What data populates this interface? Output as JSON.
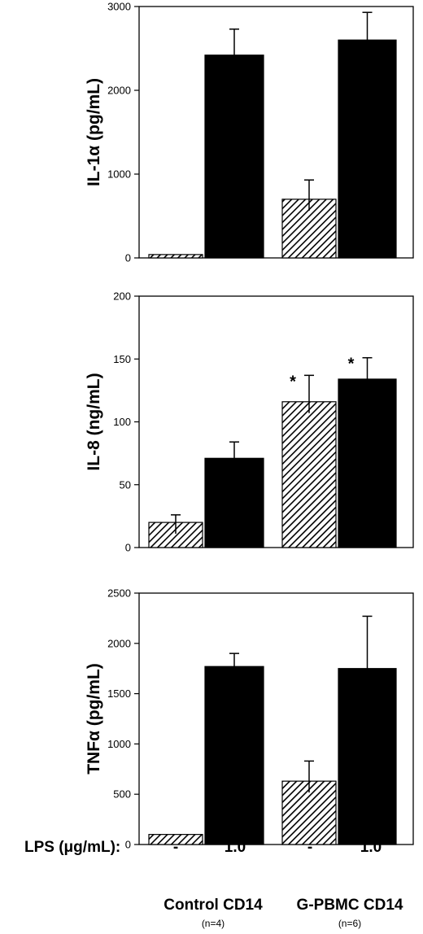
{
  "chart_data": [
    {
      "type": "bar",
      "ylabel": "IL-1α (pg/mL)",
      "ylim": [
        0,
        3000
      ],
      "yticks": [
        0,
        1000,
        2000,
        3000
      ],
      "groups": [
        "Control CD14",
        "G-PBMC CD14"
      ],
      "lps_doses": [
        "-",
        "1.0"
      ],
      "bars": [
        {
          "group": "Control CD14",
          "lps": "-",
          "value": 40,
          "error": 0,
          "fill": "hatched",
          "significant": false
        },
        {
          "group": "Control CD14",
          "lps": "1.0",
          "value": 2420,
          "error": 310,
          "fill": "black",
          "significant": false
        },
        {
          "group": "G-PBMC CD14",
          "lps": "-",
          "value": 700,
          "error": 230,
          "fill": "hatched",
          "significant": false
        },
        {
          "group": "G-PBMC CD14",
          "lps": "1.0",
          "value": 2600,
          "error": 330,
          "fill": "black",
          "significant": false
        }
      ]
    },
    {
      "type": "bar",
      "ylabel": "IL-8 (ng/mL)",
      "ylim": [
        0,
        200
      ],
      "yticks": [
        0,
        50,
        100,
        150,
        200
      ],
      "groups": [
        "Control CD14",
        "G-PBMC CD14"
      ],
      "lps_doses": [
        "-",
        "1.0"
      ],
      "bars": [
        {
          "group": "Control CD14",
          "lps": "-",
          "value": 20,
          "error": 6,
          "fill": "hatched",
          "significant": false
        },
        {
          "group": "Control CD14",
          "lps": "1.0",
          "value": 71,
          "error": 13,
          "fill": "black",
          "significant": false
        },
        {
          "group": "G-PBMC CD14",
          "lps": "-",
          "value": 116,
          "error": 21,
          "fill": "hatched",
          "significant": true
        },
        {
          "group": "G-PBMC CD14",
          "lps": "1.0",
          "value": 134,
          "error": 17,
          "fill": "black",
          "significant": true
        }
      ]
    },
    {
      "type": "bar",
      "ylabel": "TNFα (pg/mL)",
      "ylim": [
        0,
        2500
      ],
      "yticks": [
        0,
        500,
        1000,
        1500,
        2000,
        2500
      ],
      "groups": [
        "Control CD14",
        "G-PBMC CD14"
      ],
      "lps_doses": [
        "-",
        "1.0"
      ],
      "bars": [
        {
          "group": "Control CD14",
          "lps": "-",
          "value": 100,
          "error": 0,
          "fill": "hatched",
          "significant": false
        },
        {
          "group": "Control CD14",
          "lps": "1.0",
          "value": 1770,
          "error": 130,
          "fill": "black",
          "significant": false
        },
        {
          "group": "G-PBMC CD14",
          "lps": "-",
          "value": 630,
          "error": 200,
          "fill": "hatched",
          "significant": false
        },
        {
          "group": "G-PBMC CD14",
          "lps": "1.0",
          "value": 1750,
          "error": 520,
          "fill": "black",
          "significant": false
        }
      ]
    }
  ],
  "significance_marker": "*",
  "x_axis": {
    "lps_label": "LPS (μg/mL):",
    "dose_labels": [
      "-",
      "1.0",
      "-",
      "1.0"
    ],
    "group_labels": [
      "Control CD14",
      "G-PBMC CD14"
    ],
    "group_n": [
      "(n=4)",
      "(n=6)"
    ]
  },
  "colors": {
    "bar_lps": "#000000",
    "bar_control": "#000000",
    "background": "#ffffff"
  }
}
